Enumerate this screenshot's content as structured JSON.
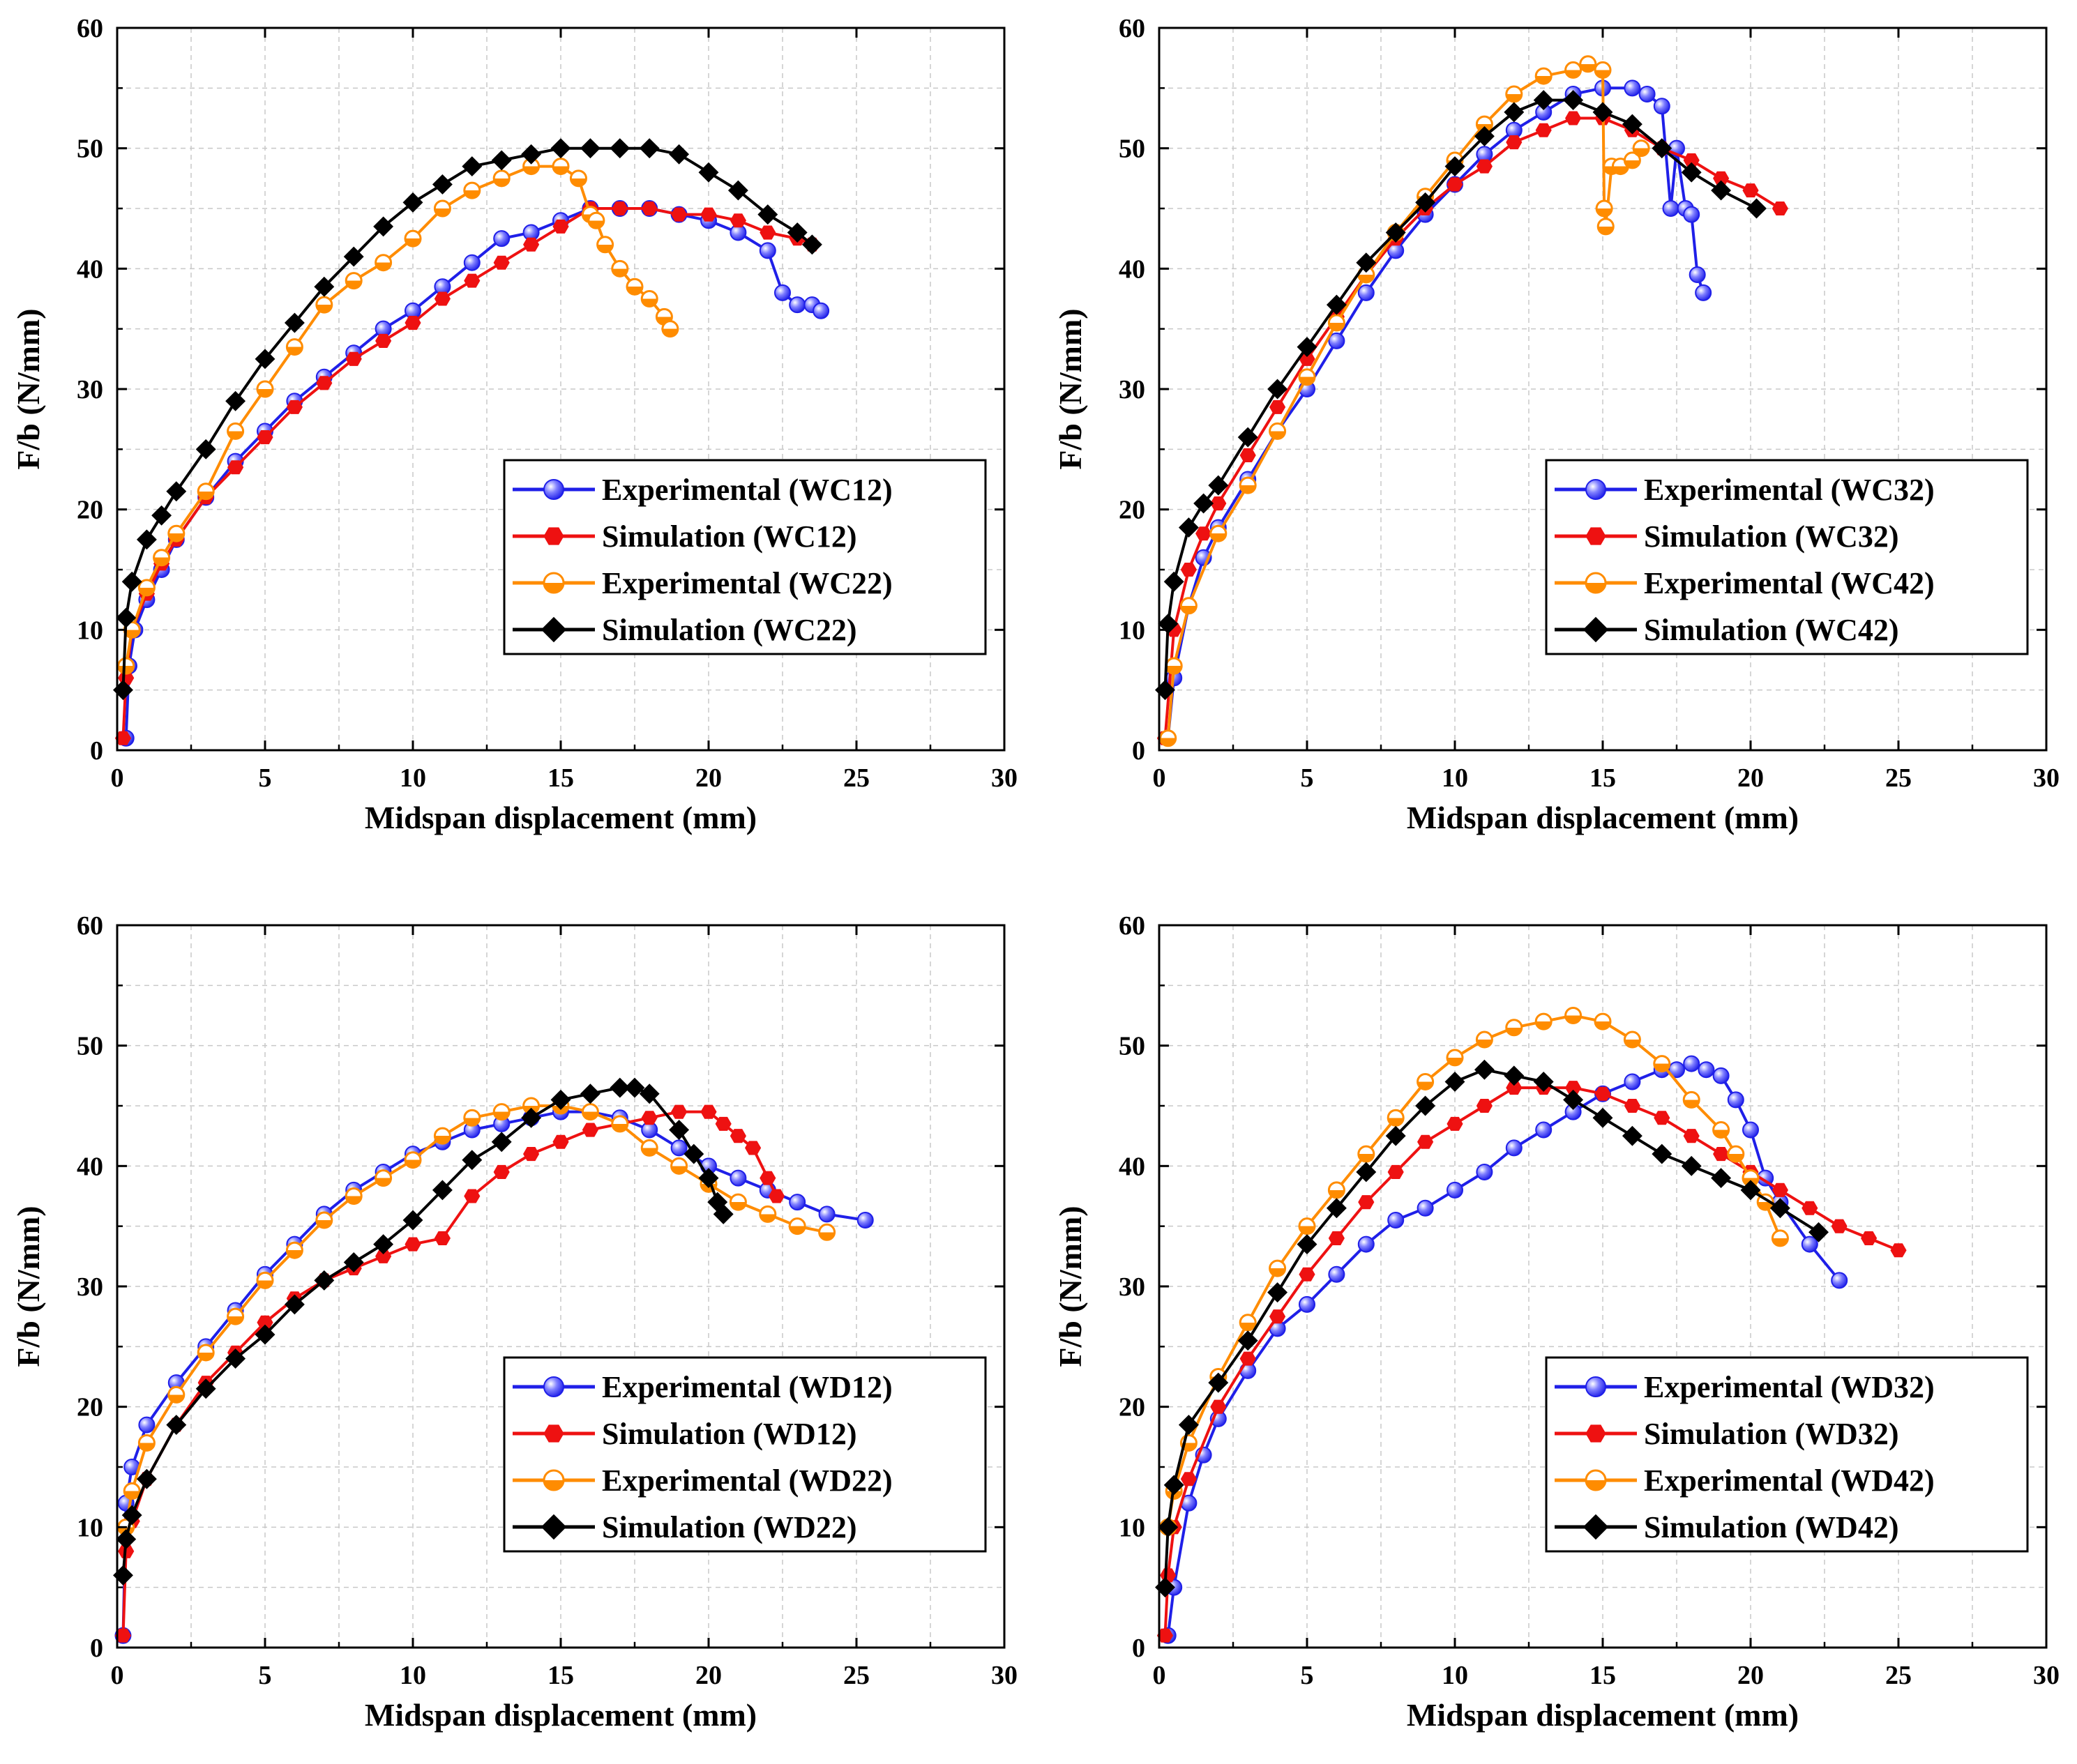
{
  "colors": {
    "blue": "#1f1fe8",
    "red": "#ee1111",
    "orange": "#ff8c00",
    "black": "#000000"
  },
  "chart_data": [
    {
      "type": "line",
      "xlabel": "Midspan displacement (mm)",
      "ylabel": "F/b (N/mm)",
      "xlim": [
        0,
        30
      ],
      "ylim": [
        0,
        60
      ],
      "xticks": [
        "0",
        "5",
        "10",
        "15",
        "20",
        "25",
        "30"
      ],
      "yticks": [
        "0",
        "10",
        "20",
        "30",
        "40",
        "50",
        "60"
      ],
      "grid": true,
      "legend_position": "center-right",
      "series": [
        {
          "name": "Experimental (WC12)",
          "color": "#1f1fe8",
          "marker": "sphere",
          "x": [
            0.3,
            0.4,
            0.6,
            1,
            1.5,
            2,
            3,
            4,
            5,
            6,
            7,
            8,
            9,
            10,
            11,
            12,
            13,
            14,
            15,
            16,
            17,
            18,
            19,
            20,
            21,
            22,
            22.5,
            23,
            23.5,
            23.8
          ],
          "y": [
            1,
            7,
            10,
            12.5,
            15,
            17.5,
            21,
            24,
            26.5,
            29,
            31,
            33,
            35,
            36.5,
            38.5,
            40.5,
            42.5,
            43,
            44,
            45,
            45,
            45,
            44.5,
            44,
            43,
            41.5,
            38,
            37,
            37,
            36.5
          ]
        },
        {
          "name": "Simulation (WC12)",
          "color": "#ee1111",
          "marker": "hexagon",
          "x": [
            0.2,
            0.3,
            0.5,
            1,
            1.5,
            2,
            3,
            4,
            5,
            6,
            7,
            8,
            9,
            10,
            11,
            12,
            13,
            14,
            15,
            16,
            17,
            18,
            19,
            20,
            21,
            22,
            23,
            23.5
          ],
          "y": [
            1,
            6,
            10,
            13,
            15.5,
            17.5,
            21,
            23.5,
            26,
            28.5,
            30.5,
            32.5,
            34,
            35.5,
            37.5,
            39,
            40.5,
            42,
            43.5,
            45,
            45,
            45,
            44.5,
            44.5,
            44,
            43,
            42.5,
            42
          ]
        },
        {
          "name": "Experimental (WC22)",
          "color": "#ff8c00",
          "marker": "halfcircle",
          "x": [
            0.3,
            0.5,
            1,
            1.5,
            2,
            3,
            4,
            5,
            6,
            7,
            8,
            9,
            10,
            11,
            12,
            13,
            14,
            15,
            15.6,
            16,
            16.2,
            16.5,
            17,
            17.5,
            18,
            18.5,
            18.7
          ],
          "y": [
            7,
            10,
            13.5,
            16,
            18,
            21.5,
            26.5,
            30,
            33.5,
            37,
            39,
            40.5,
            42.5,
            45,
            46.5,
            47.5,
            48.5,
            48.5,
            47.5,
            44.5,
            44,
            42,
            40,
            38.5,
            37.5,
            36,
            35
          ]
        },
        {
          "name": "Simulation (WC22)",
          "color": "#000000",
          "marker": "diamond",
          "x": [
            0.2,
            0.3,
            0.5,
            1,
            1.5,
            2,
            3,
            4,
            5,
            6,
            7,
            8,
            9,
            10,
            11,
            12,
            13,
            14,
            15,
            16,
            17,
            18,
            19,
            20,
            21,
            22,
            23,
            23.5
          ],
          "y": [
            5,
            11,
            14,
            17.5,
            19.5,
            21.5,
            25,
            29,
            32.5,
            35.5,
            38.5,
            41,
            43.5,
            45.5,
            47,
            48.5,
            49,
            49.5,
            50,
            50,
            50,
            50,
            49.5,
            48,
            46.5,
            44.5,
            43,
            42
          ]
        }
      ]
    },
    {
      "type": "line",
      "xlabel": "Midspan displacement (mm)",
      "ylabel": "F/b (N/mm)",
      "xlim": [
        0,
        30
      ],
      "ylim": [
        0,
        60
      ],
      "xticks": [
        "0",
        "5",
        "10",
        "15",
        "20",
        "25",
        "30"
      ],
      "yticks": [
        "0",
        "10",
        "20",
        "30",
        "40",
        "50",
        "60"
      ],
      "grid": true,
      "legend_position": "center-right",
      "series": [
        {
          "name": "Experimental (WC32)",
          "color": "#1f1fe8",
          "marker": "sphere",
          "x": [
            0.3,
            0.5,
            1,
            1.5,
            2,
            3,
            4,
            5,
            6,
            7,
            8,
            9,
            10,
            11,
            12,
            13,
            14,
            15,
            16,
            16.5,
            17,
            17.3,
            17.5,
            17.8,
            18,
            18.2,
            18.4
          ],
          "y": [
            1,
            6,
            12,
            16,
            18.5,
            22.5,
            26.5,
            30,
            34,
            38,
            41.5,
            44.5,
            47,
            49.5,
            51.5,
            53,
            54.5,
            55,
            55,
            54.5,
            53.5,
            45,
            50,
            45,
            44.5,
            39.5,
            38
          ]
        },
        {
          "name": "Simulation (WC32)",
          "color": "#ee1111",
          "marker": "hexagon",
          "x": [
            0.2,
            0.5,
            1,
            1.5,
            2,
            3,
            4,
            5,
            6,
            7,
            8,
            9,
            10,
            11,
            12,
            13,
            14,
            15,
            16,
            17,
            18,
            19,
            20,
            21
          ],
          "y": [
            1,
            10,
            15,
            18,
            20.5,
            24.5,
            28.5,
            32.5,
            36,
            39.5,
            42.5,
            45,
            47,
            48.5,
            50.5,
            51.5,
            52.5,
            52.5,
            51.5,
            50,
            49,
            47.5,
            46.5,
            45
          ]
        },
        {
          "name": "Experimental (WC42)",
          "color": "#ff8c00",
          "marker": "halfcircle",
          "x": [
            0.3,
            0.5,
            1,
            2,
            3,
            4,
            5,
            6,
            7,
            8,
            9,
            10,
            11,
            12,
            13,
            14,
            14.5,
            15,
            15.05,
            15.1,
            15.3,
            15.6,
            16,
            16.3
          ],
          "y": [
            1,
            7,
            12,
            18,
            22,
            26.5,
            31,
            35.5,
            39.5,
            43,
            46,
            49,
            52,
            54.5,
            56,
            56.5,
            57,
            56.5,
            45,
            43.5,
            48.5,
            48.5,
            49,
            50
          ]
        },
        {
          "name": "Simulation (WC42)",
          "color": "#000000",
          "marker": "diamond",
          "x": [
            0.2,
            0.3,
            0.5,
            1,
            1.5,
            2,
            3,
            4,
            5,
            6,
            7,
            8,
            9,
            10,
            11,
            12,
            13,
            14,
            15,
            16,
            17,
            18,
            19,
            20.2
          ],
          "y": [
            5,
            10.5,
            14,
            18.5,
            20.5,
            22,
            26,
            30,
            33.5,
            37,
            40.5,
            43,
            45.5,
            48.5,
            51,
            53,
            54,
            54,
            53,
            52,
            50,
            48,
            46.5,
            45
          ]
        }
      ]
    },
    {
      "type": "line",
      "xlabel": "Midspan displacement (mm)",
      "ylabel": "F/b (N/mm)",
      "xlim": [
        0,
        30
      ],
      "ylim": [
        0,
        60
      ],
      "xticks": [
        "0",
        "5",
        "10",
        "15",
        "20",
        "25",
        "30"
      ],
      "yticks": [
        "0",
        "10",
        "20",
        "30",
        "40",
        "50",
        "60"
      ],
      "grid": true,
      "legend_position": "center-right",
      "series": [
        {
          "name": "Experimental (WD12)",
          "color": "#1f1fe8",
          "marker": "sphere",
          "x": [
            0.2,
            0.3,
            0.5,
            1,
            2,
            3,
            4,
            5,
            6,
            7,
            8,
            9,
            10,
            11,
            12,
            13,
            14,
            15,
            16,
            17,
            18,
            19,
            20,
            21,
            22,
            23,
            24,
            25.3
          ],
          "y": [
            1,
            12,
            15,
            18.5,
            22,
            25,
            28,
            31,
            33.5,
            36,
            38,
            39.5,
            41,
            42,
            43,
            43.5,
            44,
            44.5,
            44.5,
            44,
            43,
            41.5,
            40,
            39,
            38,
            37,
            36,
            35.5
          ]
        },
        {
          "name": "Simulation (WD12)",
          "color": "#ee1111",
          "marker": "hexagon",
          "x": [
            0.2,
            0.3,
            0.5,
            1,
            2,
            3,
            4,
            5,
            6,
            7,
            8,
            9,
            10,
            11,
            12,
            13,
            14,
            15,
            16,
            17,
            18,
            19,
            20,
            20.5,
            21,
            21.5,
            22,
            22.3
          ],
          "y": [
            1,
            8,
            10.5,
            14,
            18.5,
            22,
            24.5,
            27,
            29,
            30.5,
            31.5,
            32.5,
            33.5,
            34,
            37.5,
            39.5,
            41,
            42,
            43,
            43.5,
            44,
            44.5,
            44.5,
            43.5,
            42.5,
            41.5,
            39,
            37.5
          ]
        },
        {
          "name": "Experimental (WD22)",
          "color": "#ff8c00",
          "marker": "halfcircle",
          "x": [
            0.3,
            0.5,
            1,
            2,
            3,
            4,
            5,
            6,
            7,
            8,
            9,
            10,
            11,
            12,
            13,
            14,
            15,
            16,
            17,
            18,
            19,
            20,
            21,
            22,
            23,
            24
          ],
          "y": [
            10,
            13,
            17,
            21,
            24.5,
            27.5,
            30.5,
            33,
            35.5,
            37.5,
            39,
            40.5,
            42.5,
            44,
            44.5,
            45,
            45,
            44.5,
            43.5,
            41.5,
            40,
            38.5,
            37,
            36,
            35,
            34.5
          ]
        },
        {
          "name": "Simulation (WD22)",
          "color": "#000000",
          "marker": "diamond",
          "x": [
            0.2,
            0.3,
            0.5,
            1,
            2,
            3,
            4,
            5,
            6,
            7,
            8,
            9,
            10,
            11,
            12,
            13,
            14,
            15,
            16,
            17,
            17.5,
            18,
            19,
            19.5,
            20,
            20.3,
            20.5
          ],
          "y": [
            6,
            9,
            11,
            14,
            18.5,
            21.5,
            24,
            26,
            28.5,
            30.5,
            32,
            33.5,
            35.5,
            38,
            40.5,
            42,
            44,
            45.5,
            46,
            46.5,
            46.5,
            46,
            43,
            41,
            39,
            37,
            36
          ]
        }
      ]
    },
    {
      "type": "line",
      "xlabel": "Midspan displacement (mm)",
      "ylabel": "F/b (N/mm)",
      "xlim": [
        0,
        30
      ],
      "ylim": [
        0,
        60
      ],
      "xticks": [
        "0",
        "5",
        "10",
        "15",
        "20",
        "25",
        "30"
      ],
      "yticks": [
        "0",
        "10",
        "20",
        "30",
        "40",
        "50",
        "60"
      ],
      "grid": true,
      "legend_position": "center-right",
      "series": [
        {
          "name": "Experimental (WD32)",
          "color": "#1f1fe8",
          "marker": "sphere",
          "x": [
            0.3,
            0.5,
            1,
            1.5,
            2,
            3,
            4,
            5,
            6,
            7,
            8,
            9,
            10,
            11,
            12,
            13,
            14,
            15,
            16,
            17,
            17.5,
            18,
            18.5,
            19,
            19.5,
            20,
            20.5,
            21,
            22,
            23
          ],
          "y": [
            1,
            5,
            12,
            16,
            19,
            23,
            26.5,
            28.5,
            31,
            33.5,
            35.5,
            36.5,
            38,
            39.5,
            41.5,
            43,
            44.5,
            46,
            47,
            48,
            48,
            48.5,
            48,
            47.5,
            45.5,
            43,
            39,
            37,
            33.5,
            30.5
          ]
        },
        {
          "name": "Simulation (WD32)",
          "color": "#ee1111",
          "marker": "hexagon",
          "x": [
            0.2,
            0.3,
            0.5,
            1,
            2,
            3,
            4,
            5,
            6,
            7,
            8,
            9,
            10,
            11,
            12,
            13,
            14,
            15,
            16,
            17,
            18,
            19,
            20,
            21,
            22,
            23,
            24,
            25
          ],
          "y": [
            1,
            6,
            10,
            14,
            20,
            24,
            27.5,
            31,
            34,
            37,
            39.5,
            42,
            43.5,
            45,
            46.5,
            46.5,
            46.5,
            46,
            45,
            44,
            42.5,
            41,
            39.5,
            38,
            36.5,
            35,
            34,
            33
          ]
        },
        {
          "name": "Experimental (WD42)",
          "color": "#ff8c00",
          "marker": "halfcircle",
          "x": [
            0.3,
            0.5,
            1,
            2,
            3,
            4,
            5,
            6,
            7,
            8,
            9,
            10,
            11,
            12,
            13,
            14,
            15,
            16,
            17,
            18,
            19,
            19.5,
            20,
            20.5,
            21
          ],
          "y": [
            10,
            13,
            17,
            22.5,
            27,
            31.5,
            35,
            38,
            41,
            44,
            47,
            49,
            50.5,
            51.5,
            52,
            52.5,
            52,
            50.5,
            48.5,
            45.5,
            43,
            41,
            39,
            37,
            34
          ]
        },
        {
          "name": "Simulation (WD42)",
          "color": "#000000",
          "marker": "diamond",
          "x": [
            0.2,
            0.3,
            0.5,
            1,
            2,
            3,
            4,
            5,
            6,
            7,
            8,
            9,
            10,
            11,
            12,
            13,
            14,
            15,
            16,
            17,
            18,
            19,
            20,
            21,
            22.3
          ],
          "y": [
            5,
            10,
            13.5,
            18.5,
            22,
            25.5,
            29.5,
            33.5,
            36.5,
            39.5,
            42.5,
            45,
            47,
            48,
            47.5,
            47,
            45.5,
            44,
            42.5,
            41,
            40,
            39,
            38,
            36.5,
            34.5
          ]
        }
      ]
    }
  ]
}
